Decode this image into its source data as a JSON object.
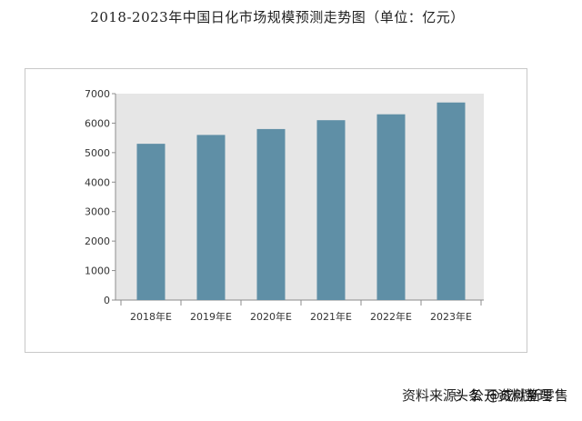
{
  "header": {
    "title": "2018-2023年中国日化市场规模预测走势图（单位：亿元）"
  },
  "footer": {
    "source": "资料来源：公开资料整理",
    "watermark": "头条 @成就新零售"
  },
  "colors": {
    "bar": "#5f8fa6",
    "plot_bg": "#e6e6e6",
    "axis": "#8c8c8c",
    "tick_text": "#333333"
  },
  "chart_data": {
    "type": "bar",
    "title": "2018-2023年中国日化市场规模预测走势图（单位：亿元）",
    "categories": [
      "2018年E",
      "2019年E",
      "2020年E",
      "2021年E",
      "2022年E",
      "2023年E"
    ],
    "values": [
      5300,
      5600,
      5800,
      6100,
      6300,
      6700
    ],
    "ylim": [
      0,
      7000
    ],
    "yticks": [
      "0",
      "1000",
      "2000",
      "3000",
      "4000",
      "5000",
      "6000",
      "7000"
    ],
    "xlabel": "",
    "ylabel": "",
    "grid": false,
    "legend": "none"
  }
}
